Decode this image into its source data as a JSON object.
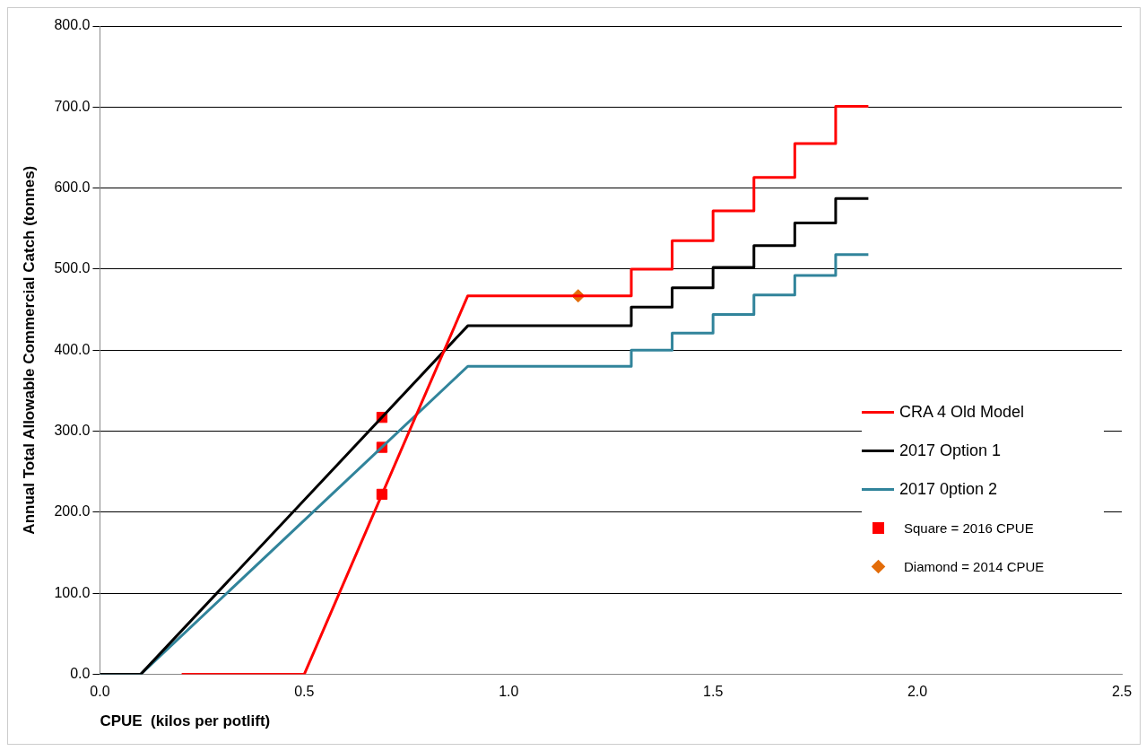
{
  "chart_data": {
    "type": "line",
    "xlabel": "CPUE  (kilos per potlift)",
    "ylabel": "Annual Total Allowable Commercial Catch (tonnes)",
    "xlim": [
      0,
      2.5
    ],
    "xticks": [
      {
        "value": 0,
        "label": "0.0"
      },
      {
        "value": 0.5,
        "label": "0.5"
      },
      {
        "value": 1,
        "label": "1.0"
      },
      {
        "value": 1.5,
        "label": "1.5"
      },
      {
        "value": 2,
        "label": "2.0"
      },
      {
        "value": 2.5,
        "label": "2.5"
      }
    ],
    "ylim": [
      0,
      800
    ],
    "yticks": [
      {
        "value": 0,
        "label": "0.0"
      },
      {
        "value": 100,
        "label": "100.0"
      },
      {
        "value": 200,
        "label": "200.0"
      },
      {
        "value": 300,
        "label": "300.0"
      },
      {
        "value": 400,
        "label": "400.0"
      },
      {
        "value": 500,
        "label": "500.0"
      },
      {
        "value": 600,
        "label": "600.0"
      },
      {
        "value": 700,
        "label": "700.0"
      },
      {
        "value": 800,
        "label": "800.0"
      }
    ],
    "grid": "y",
    "legend": "right",
    "marker": "none",
    "line_style": "solid",
    "series": [
      {
        "name": "CRA 4 Old Model",
        "color": "#ff0000",
        "x": [
          0.2,
          0.5,
          0.9,
          1.3,
          1.3,
          1.4,
          1.4,
          1.5,
          1.5,
          1.6,
          1.6,
          1.7,
          1.7,
          1.8,
          1.8,
          1.88
        ],
        "values": [
          0,
          0,
          467,
          467,
          500,
          500,
          535,
          535,
          572,
          572,
          613,
          613,
          655,
          655,
          701,
          701
        ]
      },
      {
        "name": "2017 Option 1",
        "color": "#000000",
        "x": [
          0,
          0.1,
          0.9,
          1.3,
          1.3,
          1.4,
          1.4,
          1.5,
          1.5,
          1.6,
          1.6,
          1.7,
          1.7,
          1.8,
          1.8,
          1.88
        ],
        "values": [
          0,
          0,
          430,
          430,
          453,
          453,
          477,
          477,
          502,
          502,
          529,
          529,
          557,
          557,
          587,
          587
        ]
      },
      {
        "name": "2017 0ption 2",
        "color": "#31849b",
        "x": [
          0,
          0.1,
          0.9,
          1.3,
          1.3,
          1.4,
          1.4,
          1.5,
          1.5,
          1.6,
          1.6,
          1.7,
          1.7,
          1.8,
          1.8,
          1.88
        ],
        "values": [
          0,
          0,
          380,
          380,
          400,
          400,
          421,
          421,
          444,
          444,
          468,
          468,
          492,
          492,
          518,
          518
        ]
      },
      {
        "name": "Square = 2016 CPUE",
        "type": "scatter",
        "marker": "square",
        "color": "#ff0000",
        "x": [
          0.69,
          0.69,
          0.69
        ],
        "values": [
          317,
          280,
          222
        ]
      },
      {
        "name": "Diamond = 2014 CPUE",
        "type": "scatter",
        "marker": "diamond",
        "color": "#e36c09",
        "x": [
          1.17
        ],
        "values": [
          467
        ]
      }
    ]
  }
}
